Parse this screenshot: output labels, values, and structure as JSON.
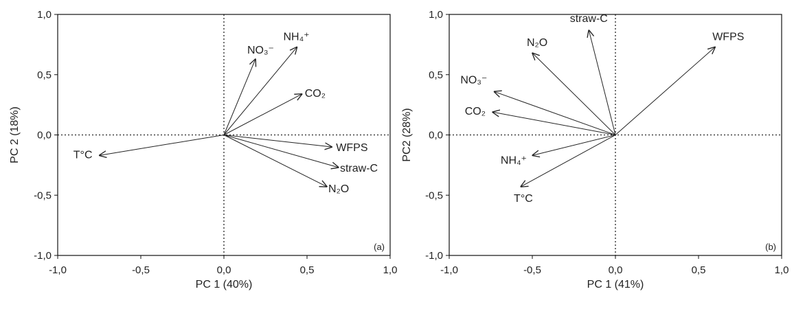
{
  "chart_data": [
    {
      "type": "scatter",
      "panel_label": "(a)",
      "xlabel": "PC 1 (40%)",
      "ylabel": "PC 2 (18%)",
      "xlim": [
        -1,
        1
      ],
      "ylim": [
        -1,
        1
      ],
      "xticks": [
        "-1,0",
        "-0,5",
        "0,0",
        "0,5",
        "1,0"
      ],
      "yticks": [
        "-1,0",
        "-0,5",
        "0,0",
        "0,5",
        "1,0"
      ],
      "reference_lines": "dotted lines at x=0 and y=0",
      "vectors": [
        {
          "label": "NO₃⁻",
          "x": 0.19,
          "y": 0.63
        },
        {
          "label": "NH₄⁺",
          "x": 0.44,
          "y": 0.73
        },
        {
          "label": "CO₂",
          "x": 0.47,
          "y": 0.34
        },
        {
          "label": "WFPS",
          "x": 0.65,
          "y": -0.1
        },
        {
          "label": "straw-C",
          "x": 0.69,
          "y": -0.27
        },
        {
          "label": "N₂O",
          "x": 0.62,
          "y": -0.43
        },
        {
          "label": "T°C",
          "x": -0.75,
          "y": -0.17
        }
      ]
    },
    {
      "type": "scatter",
      "panel_label": "(b)",
      "xlabel": "PC 1 (41%)",
      "ylabel": "PC2 (28%)",
      "xlim": [
        -1,
        1
      ],
      "ylim": [
        -1,
        1
      ],
      "xticks": [
        "-1,0",
        "-0,5",
        "0,0",
        "0,5",
        "1,0"
      ],
      "yticks": [
        "-1,0",
        "-0,5",
        "0,0",
        "0,5",
        "1,0"
      ],
      "reference_lines": "dotted lines at x=0 and y=0",
      "vectors": [
        {
          "label": "straw-C",
          "x": -0.16,
          "y": 0.87
        },
        {
          "label": "WFPS",
          "x": 0.6,
          "y": 0.73
        },
        {
          "label": "N₂O",
          "x": -0.5,
          "y": 0.68
        },
        {
          "label": "NO₃⁻",
          "x": -0.73,
          "y": 0.36
        },
        {
          "label": "CO₂",
          "x": -0.74,
          "y": 0.19
        },
        {
          "label": "NH₄⁺",
          "x": -0.5,
          "y": -0.17
        },
        {
          "label": "T°C",
          "x": -0.57,
          "y": -0.43
        }
      ]
    }
  ]
}
